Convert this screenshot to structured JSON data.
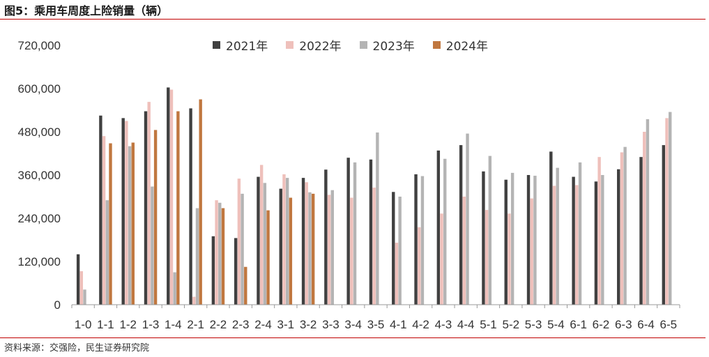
{
  "header": {
    "title": "图5：乘用车周度上险销量（辆）"
  },
  "footer": {
    "source": "资料来源：交强险，民生证券研究院"
  },
  "colors": {
    "s2021": "#404040",
    "s2022": "#efc0bb",
    "s2023": "#b4b4b4",
    "s2024": "#c0773f"
  },
  "chart_data": {
    "type": "bar",
    "title": "图5：乘用车周度上险销量（辆）",
    "xlabel": "",
    "ylabel": "",
    "ylim": [
      0,
      720000
    ],
    "yticks": [
      0,
      120000,
      240000,
      360000,
      480000,
      600000,
      720000
    ],
    "ytick_labels": [
      "0",
      "120,000",
      "240,000",
      "360,000",
      "480,000",
      "600,000",
      "720,000"
    ],
    "grid": false,
    "legend_position": "top",
    "categories": [
      "1-0",
      "1-1",
      "1-2",
      "1-3",
      "1-4",
      "2-1",
      "2-2",
      "2-3",
      "2-4",
      "3-1",
      "3-2",
      "3-3",
      "3-4",
      "3-5",
      "4-1",
      "4-2",
      "4-3",
      "4-4",
      "5-1",
      "5-2",
      "5-3",
      "5-4",
      "6-1",
      "6-2",
      "6-3",
      "6-4",
      "6-5"
    ],
    "series": [
      {
        "name": "2021年",
        "color": "#404040",
        "values": [
          140000,
          525000,
          518000,
          537000,
          603000,
          545000,
          190000,
          185000,
          355000,
          322000,
          352000,
          375000,
          408000,
          403000,
          313000,
          362000,
          428000,
          443000,
          370000,
          347000,
          360000,
          425000,
          355000,
          342000,
          376000,
          410000,
          443000
        ]
      },
      {
        "name": "2022年",
        "color": "#efc0bb",
        "values": [
          93000,
          468000,
          510000,
          563000,
          597000,
          22000,
          290000,
          350000,
          388000,
          362000,
          340000,
          305000,
          297000,
          325000,
          172000,
          215000,
          253000,
          300000,
          263000,
          253000,
          295000,
          330000,
          332000,
          410000,
          423000,
          480000,
          518000
        ]
      },
      {
        "name": "2023年",
        "color": "#b4b4b4",
        "values": [
          42000,
          290000,
          440000,
          328000,
          90000,
          268000,
          283000,
          308000,
          338000,
          352000,
          312000,
          318000,
          395000,
          478000,
          300000,
          357000,
          405000,
          475000,
          413000,
          366000,
          358000,
          380000,
          395000,
          360000,
          438000,
          515000,
          535000
        ]
      },
      {
        "name": "2024年",
        "color": "#c0773f",
        "values": [
          null,
          448000,
          450000,
          485000,
          537000,
          570000,
          268000,
          105000,
          262000,
          297000,
          308000,
          null,
          null,
          null,
          null,
          null,
          null,
          null,
          null,
          null,
          null,
          null,
          null,
          null,
          null,
          null,
          null
        ]
      }
    ]
  }
}
